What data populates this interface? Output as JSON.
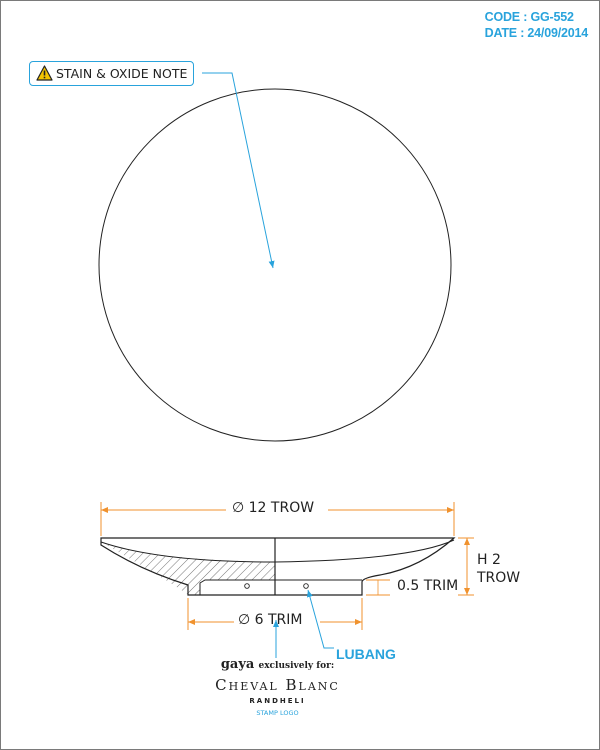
{
  "header": {
    "code": "CODE : GG-552",
    "date": "DATE : 24/09/2014"
  },
  "note": {
    "icon": "warning-icon",
    "label": "STAIN & OXIDE NOTE"
  },
  "dimensions": {
    "diameter_top": "∅ 12 TROW",
    "height": [
      "H 2",
      "TROW"
    ],
    "foot_height": "0.5 TRIM",
    "diameter_bottom": "∅ 6 TRIM"
  },
  "callouts": {
    "lubang": "LUBANG"
  },
  "logo": {
    "brand": "gaya",
    "exclusive": "exclusively for:",
    "name": "Cheval Blanc",
    "location": "RANDHELI",
    "stamp_caption": "STAMP LOGO"
  },
  "colors": {
    "accent": "#29a3dc",
    "dimension": "#f0922e",
    "line": "#222222"
  }
}
